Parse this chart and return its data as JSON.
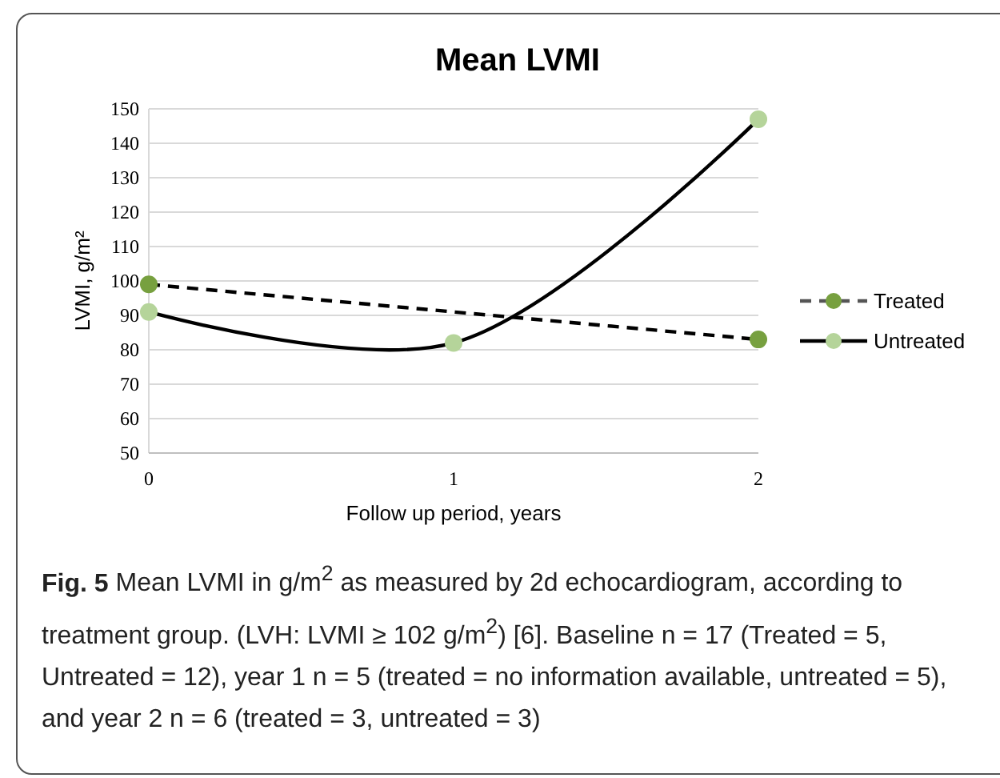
{
  "chart_data": {
    "type": "line",
    "title": "Mean LVMI",
    "xlabel": "Follow up period, years",
    "ylabel": "LVMI, g/m²",
    "x": [
      0,
      1,
      2
    ],
    "series": [
      {
        "name": "Treated",
        "color": "#77a03f",
        "x": [
          0,
          2
        ],
        "values": [
          99,
          83
        ],
        "line_style": "dashed"
      },
      {
        "name": "Untreated",
        "color": "#b5d49a",
        "values": [
          91,
          82,
          147
        ],
        "line_style": "solid"
      }
    ],
    "xlim": [
      0,
      2
    ],
    "xticks": [
      0,
      1,
      2
    ],
    "ylim": [
      50,
      150
    ],
    "yticks": [
      50,
      60,
      70,
      80,
      90,
      100,
      110,
      120,
      130,
      140,
      150
    ],
    "grid": "y",
    "legend": "right",
    "marker": "circle",
    "annotations": [
      "Fig. 5",
      "Mean LVMI in g/m$^{2}$ as measured by 2d echocardiogram, according to treatment group. (LVH: LVMI ≥ 102 g/m$^{2}$) [6]. Baseline n = 17 (Treated = 5, Untreated = 12), year 1 n = 5 (treated = no information available, untreated = 5), and year 2 n = 6 (treated = 3, untreated = 3)"
    ]
  }
}
